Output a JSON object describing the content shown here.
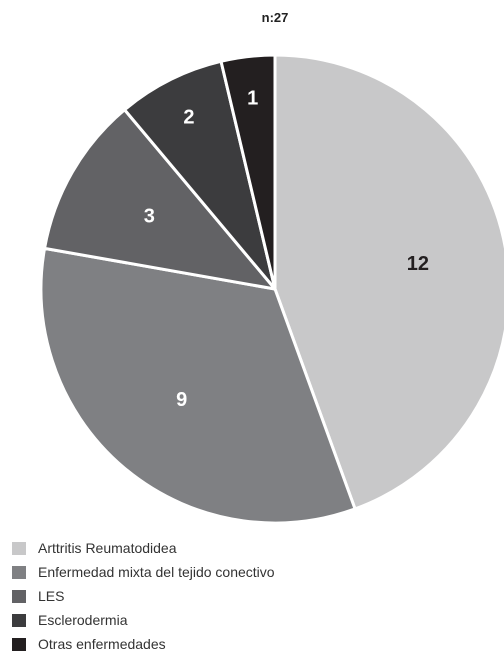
{
  "chart_data": {
    "type": "pie",
    "title": "n:27",
    "categories": [
      "Arttritis Reumatodidea",
      "Enfermedad mixta del tejido conectivo",
      "LES",
      "Esclerodermia",
      "Otras enfermedades"
    ],
    "values": [
      12,
      9,
      3,
      2,
      1
    ],
    "colors": [
      "#c8c8c9",
      "#7f8083",
      "#626265",
      "#3c3c3e",
      "#231f20"
    ],
    "data_label_colors": [
      "#231f20",
      "#ffffff",
      "#ffffff",
      "#ffffff",
      "#ffffff"
    ],
    "legend_position": "bottom-left",
    "start_angle_deg": 0,
    "direction": "clockwise"
  }
}
